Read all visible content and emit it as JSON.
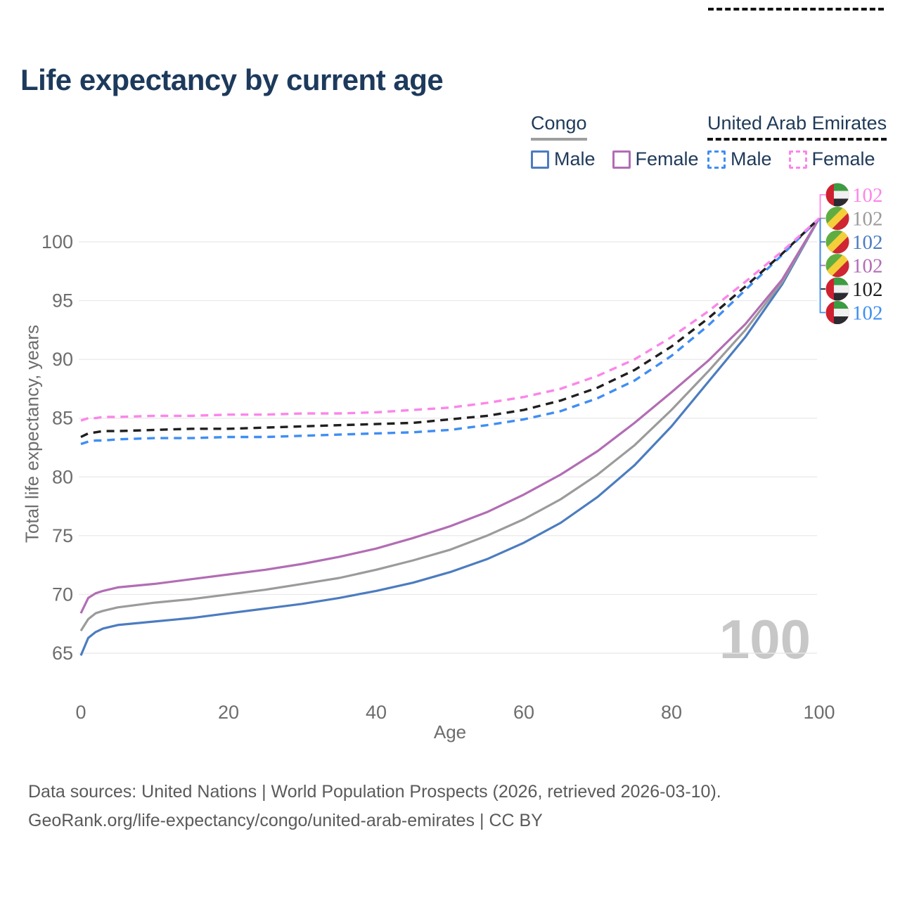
{
  "page": {
    "title": "Life expectancy by current age",
    "watermark": "100",
    "footer_line1": "Data sources: United Nations | World Population Prospects (2026, retrieved 2026-03-10).",
    "footer_line2": "GeoRank.org/life-expectancy/congo/united-arab-emirates | CC BY"
  },
  "colors": {
    "title": "#1d3a5c",
    "tick_text": "#6d6d6d",
    "gridline": "#e8e8e8",
    "watermark": "#c7c7c7",
    "footer": "#5a5a5a"
  },
  "legend": {
    "groups": [
      {
        "name": "Congo",
        "underline": "solid",
        "underline_color": "#9e9e9e",
        "items": [
          {
            "label": "Male",
            "color": "#4c7cc0",
            "style": "solid"
          },
          {
            "label": "Female",
            "color": "#b26db4",
            "style": "solid"
          }
        ]
      },
      {
        "name": "United Arab Emirates",
        "underline": "dashed",
        "underline_color": "#141414",
        "items": [
          {
            "label": "Male",
            "color": "#3f8ef2",
            "style": "dashed"
          },
          {
            "label": "Female",
            "color": "#fb86e9",
            "style": "dashed"
          }
        ]
      }
    ]
  },
  "chart_data": {
    "type": "line",
    "title": "Life expectancy by current age",
    "xlabel": "Age",
    "ylabel": "Total life expectancy, years",
    "xlim": [
      0,
      100
    ],
    "ylim": [
      63,
      103
    ],
    "x_ticks": [
      0,
      20,
      40,
      60,
      80,
      100
    ],
    "y_ticks": [
      65,
      70,
      75,
      80,
      85,
      90,
      95,
      100
    ],
    "grid": "horizontal",
    "legend_position": "top-right",
    "x": [
      0,
      1,
      2,
      3,
      5,
      10,
      15,
      20,
      25,
      30,
      35,
      40,
      45,
      50,
      55,
      60,
      65,
      70,
      75,
      80,
      85,
      90,
      95,
      100
    ],
    "series": [
      {
        "id": "congo_male",
        "name": "Congo Male",
        "color": "#4c7cc0",
        "dash": "solid",
        "values": [
          64.8,
          66.3,
          66.8,
          67.1,
          67.4,
          67.7,
          68.0,
          68.4,
          68.8,
          69.2,
          69.7,
          70.3,
          71.0,
          71.9,
          73.0,
          74.4,
          76.1,
          78.3,
          81.0,
          84.3,
          88.1,
          91.9,
          96.4,
          102
        ]
      },
      {
        "id": "congo_both",
        "name": "Congo Both sexes",
        "color": "#9b9b9b",
        "dash": "solid",
        "values": [
          66.9,
          67.9,
          68.4,
          68.6,
          68.9,
          69.3,
          69.6,
          70.0,
          70.4,
          70.9,
          71.4,
          72.1,
          72.9,
          73.8,
          75.0,
          76.4,
          78.1,
          80.2,
          82.7,
          85.7,
          89.0,
          92.5,
          96.6,
          102
        ]
      },
      {
        "id": "congo_female",
        "name": "Congo Female",
        "color": "#b26db4",
        "dash": "solid",
        "values": [
          68.4,
          69.7,
          70.1,
          70.3,
          70.6,
          70.9,
          71.3,
          71.7,
          72.1,
          72.6,
          73.2,
          73.9,
          74.8,
          75.8,
          77.0,
          78.5,
          80.2,
          82.2,
          84.6,
          87.2,
          89.9,
          93.0,
          96.8,
          102
        ]
      },
      {
        "id": "uae_male",
        "name": "United Arab Emirates Male",
        "color": "#3f8ef2",
        "dash": "dashed",
        "values": [
          82.8,
          83.0,
          83.1,
          83.1,
          83.2,
          83.3,
          83.3,
          83.4,
          83.4,
          83.5,
          83.6,
          83.7,
          83.8,
          84.0,
          84.4,
          84.9,
          85.6,
          86.7,
          88.2,
          90.3,
          92.9,
          95.9,
          98.9,
          102
        ]
      },
      {
        "id": "uae_both",
        "name": "United Arab Emirates Both sexes",
        "color": "#1f1f1f",
        "dash": "dashed",
        "values": [
          83.4,
          83.7,
          83.8,
          83.9,
          83.9,
          84.0,
          84.1,
          84.1,
          84.2,
          84.3,
          84.4,
          84.5,
          84.6,
          84.9,
          85.2,
          85.7,
          86.5,
          87.6,
          89.1,
          91.1,
          93.5,
          96.2,
          99.0,
          102
        ]
      },
      {
        "id": "uae_female",
        "name": "United Arab Emirates Female",
        "color": "#fb86e9",
        "dash": "dashed",
        "values": [
          84.8,
          85.0,
          85.0,
          85.1,
          85.1,
          85.2,
          85.2,
          85.3,
          85.3,
          85.4,
          85.4,
          85.5,
          85.7,
          85.9,
          86.3,
          86.8,
          87.5,
          88.6,
          90.0,
          91.9,
          94.1,
          96.6,
          99.2,
          102
        ]
      }
    ],
    "end_labels": [
      {
        "series": "uae_female",
        "text": "102",
        "color": "#fb86e9",
        "flag": "uae"
      },
      {
        "series": "congo_both",
        "text": "102",
        "color": "#9b9b9b",
        "flag": "congo"
      },
      {
        "series": "congo_male",
        "text": "102",
        "color": "#4c7cc0",
        "flag": "congo"
      },
      {
        "series": "congo_female",
        "text": "102",
        "color": "#b26db4",
        "flag": "congo"
      },
      {
        "series": "uae_both",
        "text": "102",
        "color": "#1d1d1d",
        "flag": "uae"
      },
      {
        "series": "uae_male",
        "text": "102",
        "color": "#3f8ef2",
        "flag": "uae"
      }
    ]
  }
}
